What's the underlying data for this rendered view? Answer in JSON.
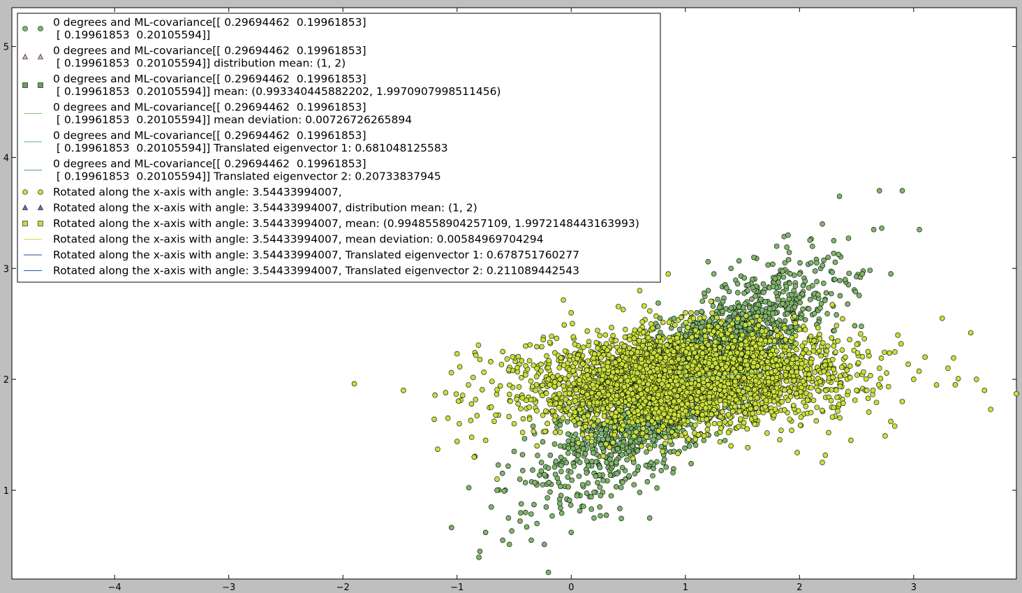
{
  "chart_data": {
    "type": "scatter",
    "title": "",
    "xlabel": "",
    "ylabel": "",
    "xlim": [
      -4.9,
      3.9
    ],
    "ylim": [
      0.2,
      5.35
    ],
    "xticks": [
      -4,
      -3,
      -2,
      -1,
      0,
      1,
      2,
      3
    ],
    "yticks": [
      1,
      2,
      3,
      4,
      5
    ],
    "grid": false,
    "legend_position": "upper-left",
    "legend": [
      {
        "marker": "circle",
        "color": "#7fb56b",
        "lines": [
          "0 degrees and ML-covariance[[ 0.29694462  0.19961853]",
          " [ 0.19961853  0.20105594]]"
        ]
      },
      {
        "marker": "triangle",
        "color": "#e2b0a8",
        "lines": [
          "0 degrees and ML-covariance[[ 0.29694462  0.19961853]",
          " [ 0.19961853  0.20105594]] distribution mean: (1, 2)"
        ]
      },
      {
        "marker": "square",
        "color": "#6aa05a",
        "lines": [
          "0 degrees and ML-covariance[[ 0.29694462  0.19961853]",
          " [ 0.19961853  0.20105594]] mean: (0.993340445882202, 1.9970907998511456)"
        ]
      },
      {
        "marker": "line",
        "color": "#79c36a",
        "lines": [
          "0 degrees and ML-covariance[[ 0.29694462  0.19961853]",
          " [ 0.19961853  0.20105594]] mean deviation: 0.00726726265894"
        ]
      },
      {
        "marker": "line",
        "color": "#5aaa9a",
        "lines": [
          "0 degrees and ML-covariance[[ 0.29694462  0.19961853]",
          " [ 0.19961853  0.20105594]] Translated eigenvector 1: 0.681048125583"
        ]
      },
      {
        "marker": "line",
        "color": "#4aa08a",
        "lines": [
          "0 degrees and ML-covariance[[ 0.29694462  0.19961853]",
          " [ 0.19961853  0.20105594]] Translated eigenvector 2: 0.20733837945"
        ]
      },
      {
        "marker": "circle",
        "color": "#c8df3c",
        "lines": [
          "Rotated along the x-axis with angle: 3.54433994007,"
        ]
      },
      {
        "marker": "triangle",
        "color": "#8a5fb0",
        "lines": [
          "Rotated along the x-axis with angle: 3.54433994007, distribution mean: (1, 2)"
        ]
      },
      {
        "marker": "square",
        "color": "#c8df3c",
        "lines": [
          "Rotated along the x-axis with angle: 3.54433994007, mean: (0.9948558904257109, 1.9972148443163993)"
        ]
      },
      {
        "marker": "line",
        "color": "#d8d83a",
        "lines": [
          "Rotated along the x-axis with angle: 3.54433994007, mean deviation: 0.00584969704294"
        ]
      },
      {
        "marker": "line",
        "color": "#1f4e8c",
        "lines": [
          "Rotated along the x-axis with angle: 3.54433994007, Translated eigenvector 1: 0.678751760277"
        ]
      },
      {
        "marker": "line",
        "color": "#1f5e9c",
        "lines": [
          "Rotated along the x-axis with angle: 3.54433994007, Translated eigenvector 2: 0.211089442543"
        ]
      }
    ],
    "series": [
      {
        "marker": "circle",
        "color": "#7fb56b",
        "mean": [
          1,
          2
        ],
        "cov": [
          [
            0.29694462,
            0.19961853
          ],
          [
            0.19961853,
            0.20105594
          ]
        ],
        "points": [
          [
            1.0,
            2.0
          ],
          [
            1.9,
            3.3
          ],
          [
            2.2,
            3.4
          ],
          [
            2.7,
            3.7
          ],
          [
            2.9,
            3.7
          ],
          [
            2.35,
            3.65
          ],
          [
            3.05,
            3.35
          ],
          [
            2.65,
            3.35
          ],
          [
            1.6,
            3.1
          ],
          [
            1.4,
            3.0
          ],
          [
            1.8,
            3.2
          ],
          [
            2.1,
            3.05
          ],
          [
            2.4,
            2.9
          ],
          [
            1.2,
            2.8
          ],
          [
            1.7,
            2.7
          ],
          [
            0.9,
            2.55
          ],
          [
            1.55,
            2.85
          ],
          [
            2.0,
            2.95
          ],
          [
            1.3,
            2.65
          ],
          [
            2.25,
            3.1
          ],
          [
            0.7,
            2.45
          ],
          [
            1.1,
            2.6
          ],
          [
            1.95,
            2.8
          ],
          [
            2.55,
            2.95
          ],
          [
            -0.5,
            1.35
          ],
          [
            -0.2,
            1.2
          ],
          [
            0.1,
            1.05
          ],
          [
            0.3,
            1.3
          ],
          [
            -0.65,
            1.0
          ],
          [
            -0.4,
            0.8
          ],
          [
            0.05,
            0.95
          ],
          [
            0.4,
            1.15
          ],
          [
            -0.8,
            0.45
          ],
          [
            -0.2,
            0.26
          ],
          [
            -0.6,
            0.55
          ],
          [
            -0.3,
            0.7
          ],
          [
            0.0,
            0.62
          ],
          [
            0.25,
            0.85
          ],
          [
            -0.45,
            1.1
          ],
          [
            0.55,
            1.05
          ],
          [
            -0.75,
            0.62
          ],
          [
            -0.1,
            0.88
          ],
          [
            0.15,
            1.22
          ],
          [
            0.7,
            1.25
          ],
          [
            0.9,
            1.35
          ],
          [
            -0.55,
            0.75
          ],
          [
            0.35,
            0.95
          ],
          [
            -0.25,
            1.05
          ],
          [
            -0.7,
            0.85
          ],
          [
            0.6,
            0.98
          ],
          [
            0.45,
            1.4
          ],
          [
            -0.35,
            0.55
          ],
          [
            0.2,
            0.75
          ],
          [
            1.25,
            2.95
          ],
          [
            1.5,
            2.5
          ],
          [
            2.3,
            3.25
          ]
        ]
      },
      {
        "marker": "circle",
        "color": "#c8df3c",
        "mean": [
          1,
          2
        ],
        "cov": [
          [
            0.29694462,
            0.19961853
          ],
          [
            0.19961853,
            0.20105594
          ]
        ],
        "points": [
          [
            -1.9,
            1.96
          ],
          [
            -1.47,
            1.9
          ],
          [
            -1.2,
            1.64
          ],
          [
            -1.17,
            1.37
          ],
          [
            -1.0,
            1.44
          ],
          [
            -0.98,
            1.6
          ],
          [
            -1.1,
            1.88
          ],
          [
            -1.05,
            2.06
          ],
          [
            -0.9,
            1.95
          ],
          [
            -0.8,
            2.18
          ],
          [
            -0.7,
            1.75
          ],
          [
            -0.6,
            2.25
          ],
          [
            -0.5,
            1.6
          ],
          [
            -0.4,
            2.3
          ],
          [
            -0.3,
            1.4
          ],
          [
            -0.2,
            2.0
          ],
          [
            0.0,
            2.6
          ],
          [
            0.1,
            1.5
          ],
          [
            0.3,
            2.4
          ],
          [
            0.5,
            1.7
          ],
          [
            0.7,
            2.5
          ],
          [
            0.9,
            1.8
          ],
          [
            1.1,
            2.2
          ],
          [
            1.3,
            1.6
          ],
          [
            1.5,
            2.4
          ],
          [
            1.7,
            1.9
          ],
          [
            1.9,
            2.1
          ],
          [
            2.1,
            1.7
          ],
          [
            2.3,
            2.3
          ],
          [
            2.5,
            1.9
          ],
          [
            2.7,
            2.1
          ],
          [
            2.9,
            1.8
          ],
          [
            3.1,
            2.2
          ],
          [
            3.2,
            1.95
          ],
          [
            3.5,
            2.42
          ],
          [
            3.55,
            2.0
          ],
          [
            3.62,
            1.9
          ],
          [
            3.9,
            1.87
          ],
          [
            3.25,
            2.55
          ],
          [
            2.75,
            1.49
          ],
          [
            2.2,
            1.25
          ],
          [
            1.98,
            1.34
          ],
          [
            2.45,
            1.45
          ],
          [
            0.6,
            2.8
          ],
          [
            0.85,
            2.95
          ],
          [
            1.0,
            2.6
          ],
          [
            -0.85,
            1.3
          ],
          [
            -0.65,
            1.1
          ],
          [
            0.2,
            2.15
          ],
          [
            0.4,
            1.95
          ],
          [
            1.2,
            1.95
          ],
          [
            1.6,
            2.15
          ],
          [
            2.0,
            2.45
          ],
          [
            2.6,
            2.25
          ],
          [
            3.0,
            2.0
          ],
          [
            3.3,
            2.1
          ],
          [
            -1.0,
            2.23
          ],
          [
            -1.08,
            1.65
          ],
          [
            -0.75,
            1.45
          ],
          [
            0.8,
            1.35
          ],
          [
            1.4,
            1.4
          ],
          [
            2.8,
            1.62
          ]
        ]
      }
    ]
  }
}
